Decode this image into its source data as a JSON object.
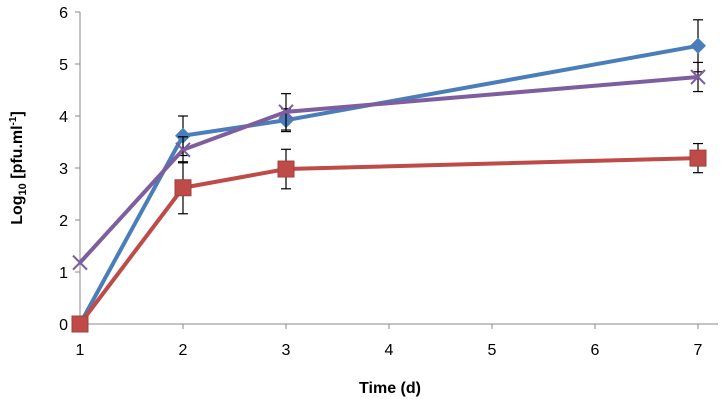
{
  "chart_data": {
    "type": "line",
    "title": "",
    "xlabel": "Time (d)",
    "ylabel_main": "Log",
    "ylabel_sub": "10",
    "ylabel_rest": " [pfu.ml",
    "ylabel_sup": "-1",
    "ylabel_end": "]",
    "xlim": [
      1,
      7
    ],
    "ylim": [
      0,
      6
    ],
    "xticks": [
      1,
      2,
      3,
      4,
      5,
      6,
      7
    ],
    "yticks": [
      0,
      1,
      2,
      3,
      4,
      5,
      6
    ],
    "grid": false,
    "legend": "none",
    "series": [
      {
        "name": "series-blue",
        "color": "#4a7ebb",
        "marker": "diamond",
        "x": [
          1,
          2,
          3,
          7
        ],
        "y": [
          0,
          3.62,
          3.92,
          5.35
        ],
        "err": [
          0,
          0.38,
          0.22,
          0.5
        ]
      },
      {
        "name": "series-red",
        "color": "#be4b48",
        "marker": "square",
        "x": [
          1,
          2,
          3,
          7
        ],
        "y": [
          0,
          2.62,
          2.98,
          3.19
        ],
        "err": [
          0,
          0.5,
          0.38,
          0.28
        ]
      },
      {
        "name": "series-purple",
        "color": "#7d5fa0",
        "marker": "x",
        "x": [
          1,
          2,
          3,
          7
        ],
        "y": [
          1.18,
          3.35,
          4.08,
          4.75
        ],
        "err": [
          0,
          0.25,
          0.35,
          0.28
        ]
      }
    ]
  }
}
